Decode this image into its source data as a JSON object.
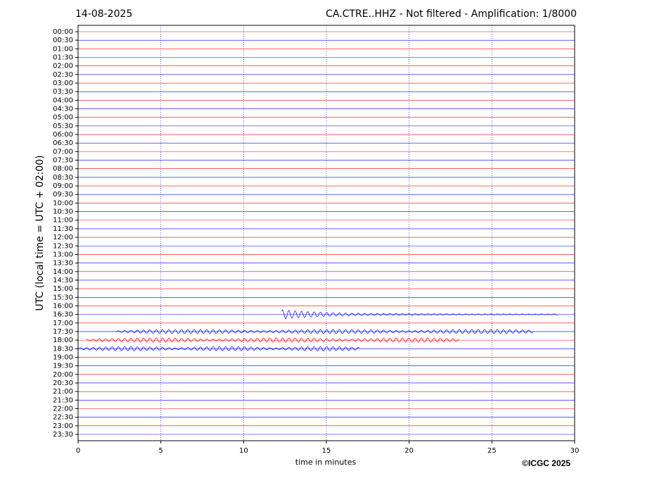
{
  "chart_data": {
    "type": "helicorder",
    "title_left": "14-08-2025",
    "title": "CA.CTRE..HHZ - Not filtered - Amplification: 1/8000",
    "ylabel": "UTC (local time = UTC + 02:00)",
    "xlabel": "time in minutes",
    "credit": "©ICGC 2025",
    "categories": [
      "00:00",
      "00:30",
      "01:00",
      "01:30",
      "02:00",
      "02:30",
      "03:00",
      "03:30",
      "04:00",
      "04:30",
      "05:00",
      "05:30",
      "06:00",
      "06:30",
      "07:00",
      "07:30",
      "08:00",
      "08:30",
      "09:00",
      "09:30",
      "10:00",
      "10:30",
      "11:00",
      "11:30",
      "12:00",
      "12:30",
      "13:00",
      "13:30",
      "14:00",
      "14:30",
      "15:00",
      "15:30",
      "16:00",
      "16:30",
      "17:00",
      "17:30",
      "18:00",
      "18:30",
      "19:00",
      "19:30",
      "20:00",
      "20:30",
      "21:00",
      "21:30",
      "22:00",
      "22:30",
      "23:00",
      "23:30"
    ],
    "colors": [
      "#ff0000",
      "#0000ff"
    ],
    "xlim": [
      0,
      30
    ],
    "xticks": [
      0,
      5,
      10,
      15,
      20,
      25,
      30
    ],
    "grid": true,
    "events": [
      {
        "row": "16:30",
        "start": 12.3,
        "end": 29
      },
      {
        "row": "17:30",
        "start": 2.3,
        "end": 27.5
      },
      {
        "row": "18:00",
        "start": 0.5,
        "end": 23
      },
      {
        "row": "18:30",
        "start": 0,
        "end": 17
      }
    ]
  }
}
